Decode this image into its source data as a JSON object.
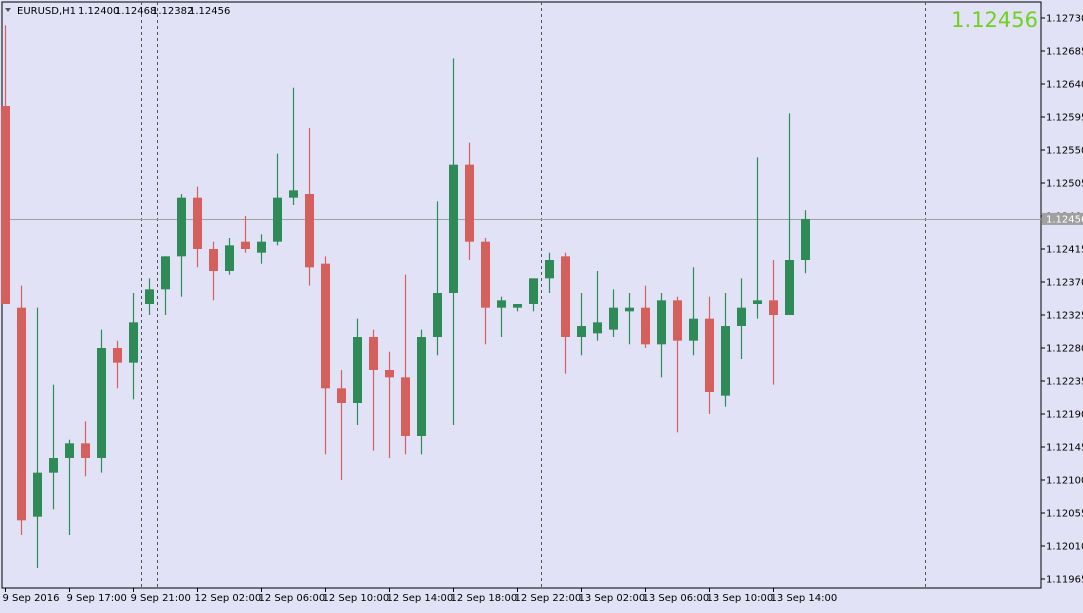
{
  "chart_data": {
    "type": "candlestick",
    "symbol_header": "EURUSD,H1",
    "ohlc_header": [
      "1.12400",
      "1.12468",
      "1.12382",
      "1.12456"
    ],
    "current_price": "1.12456",
    "current_price_value": 1.12456,
    "ylim": [
      1.1195,
      1.1275
    ],
    "y_ticks": [
      "1.12730",
      "1.12685",
      "1.12640",
      "1.12595",
      "1.12550",
      "1.12505",
      "1.12460",
      "1.12415",
      "1.12370",
      "1.12325",
      "1.12280",
      "1.12235",
      "1.12190",
      "1.12145",
      "1.12100",
      "1.12055",
      "1.12010",
      "1.11965"
    ],
    "x_ticks": [
      "9 Sep 2016",
      "9 Sep 17:00",
      "9 Sep 21:00",
      "12 Sep 02:00",
      "12 Sep 06:00",
      "12 Sep 10:00",
      "12 Sep 14:00",
      "12 Sep 18:00",
      "12 Sep 22:00",
      "13 Sep 02:00",
      "13 Sep 06:00",
      "13 Sep 10:00",
      "13 Sep 14:00"
    ],
    "session_separators_after_candle": [
      8.5,
      9.5,
      33.5,
      57.5
    ],
    "colors": {
      "bull": "#2e8a57",
      "bear": "#d45f5d",
      "background": "#e2e2f6",
      "grid": "#000000",
      "price_line": "#a0a0a0",
      "price_label_bg": "#a0a0a0",
      "big_price": "#6fd11e"
    },
    "candles": [
      {
        "o": 1.1261,
        "h": 1.1272,
        "l": 1.1234,
        "c": 1.1234
      },
      {
        "o": 1.12335,
        "h": 1.12365,
        "l": 1.12025,
        "c": 1.12045
      },
      {
        "o": 1.1205,
        "h": 1.12335,
        "l": 1.1198,
        "c": 1.1211
      },
      {
        "o": 1.1211,
        "h": 1.1223,
        "l": 1.1206,
        "c": 1.1213
      },
      {
        "o": 1.1213,
        "h": 1.12155,
        "l": 1.12025,
        "c": 1.1215
      },
      {
        "o": 1.1215,
        "h": 1.1218,
        "l": 1.12105,
        "c": 1.1213
      },
      {
        "o": 1.1213,
        "h": 1.12305,
        "l": 1.1211,
        "c": 1.1228
      },
      {
        "o": 1.1228,
        "h": 1.1229,
        "l": 1.12225,
        "c": 1.1226
      },
      {
        "o": 1.1226,
        "h": 1.12355,
        "l": 1.1221,
        "c": 1.12315
      },
      {
        "o": 1.1234,
        "h": 1.12375,
        "l": 1.12325,
        "c": 1.1236
      },
      {
        "o": 1.1236,
        "h": 1.12405,
        "l": 1.12325,
        "c": 1.12405
      },
      {
        "o": 1.12405,
        "h": 1.1249,
        "l": 1.1235,
        "c": 1.12485
      },
      {
        "o": 1.12485,
        "h": 1.125,
        "l": 1.1239,
        "c": 1.12415
      },
      {
        "o": 1.12415,
        "h": 1.12425,
        "l": 1.12345,
        "c": 1.12385
      },
      {
        "o": 1.12385,
        "h": 1.1243,
        "l": 1.1238,
        "c": 1.1242
      },
      {
        "o": 1.12425,
        "h": 1.1246,
        "l": 1.1241,
        "c": 1.12415
      },
      {
        "o": 1.1241,
        "h": 1.12435,
        "l": 1.12395,
        "c": 1.12425
      },
      {
        "o": 1.12425,
        "h": 1.12545,
        "l": 1.1242,
        "c": 1.12485
      },
      {
        "o": 1.12485,
        "h": 1.12635,
        "l": 1.12475,
        "c": 1.12495
      },
      {
        "o": 1.1249,
        "h": 1.1258,
        "l": 1.12365,
        "c": 1.1239
      },
      {
        "o": 1.12395,
        "h": 1.12405,
        "l": 1.12135,
        "c": 1.12225
      },
      {
        "o": 1.12225,
        "h": 1.1225,
        "l": 1.121,
        "c": 1.12205
      },
      {
        "o": 1.12205,
        "h": 1.1232,
        "l": 1.12175,
        "c": 1.12295
      },
      {
        "o": 1.12295,
        "h": 1.12305,
        "l": 1.1214,
        "c": 1.1225
      },
      {
        "o": 1.1225,
        "h": 1.12275,
        "l": 1.1213,
        "c": 1.1224
      },
      {
        "o": 1.1224,
        "h": 1.1238,
        "l": 1.12135,
        "c": 1.1216
      },
      {
        "o": 1.1216,
        "h": 1.12305,
        "l": 1.12135,
        "c": 1.12295
      },
      {
        "o": 1.12295,
        "h": 1.1248,
        "l": 1.1227,
        "c": 1.12355
      },
      {
        "o": 1.12355,
        "h": 1.12675,
        "l": 1.12175,
        "c": 1.1253
      },
      {
        "o": 1.1253,
        "h": 1.1256,
        "l": 1.124,
        "c": 1.12425
      },
      {
        "o": 1.12425,
        "h": 1.1243,
        "l": 1.12285,
        "c": 1.12335
      },
      {
        "o": 1.12335,
        "h": 1.1235,
        "l": 1.12295,
        "c": 1.12345
      },
      {
        "o": 1.12335,
        "h": 1.1234,
        "l": 1.1233,
        "c": 1.1234
      },
      {
        "o": 1.1234,
        "h": 1.12375,
        "l": 1.1233,
        "c": 1.12375
      },
      {
        "o": 1.12375,
        "h": 1.1241,
        "l": 1.12355,
        "c": 1.124
      },
      {
        "o": 1.12405,
        "h": 1.1241,
        "l": 1.12245,
        "c": 1.12295
      },
      {
        "o": 1.12295,
        "h": 1.12355,
        "l": 1.1227,
        "c": 1.1231
      },
      {
        "o": 1.123,
        "h": 1.12385,
        "l": 1.1229,
        "c": 1.12315
      },
      {
        "o": 1.12305,
        "h": 1.1236,
        "l": 1.12295,
        "c": 1.12335
      },
      {
        "o": 1.1233,
        "h": 1.12355,
        "l": 1.12285,
        "c": 1.12335
      },
      {
        "o": 1.12335,
        "h": 1.12365,
        "l": 1.1228,
        "c": 1.12285
      },
      {
        "o": 1.12285,
        "h": 1.12355,
        "l": 1.1224,
        "c": 1.12345
      },
      {
        "o": 1.12345,
        "h": 1.1235,
        "l": 1.12165,
        "c": 1.1229
      },
      {
        "o": 1.1229,
        "h": 1.1239,
        "l": 1.1227,
        "c": 1.1232
      },
      {
        "o": 1.1232,
        "h": 1.1235,
        "l": 1.1219,
        "c": 1.1222
      },
      {
        "o": 1.12215,
        "h": 1.12355,
        "l": 1.122,
        "c": 1.1231
      },
      {
        "o": 1.1231,
        "h": 1.12375,
        "l": 1.12265,
        "c": 1.12335
      },
      {
        "o": 1.1234,
        "h": 1.1254,
        "l": 1.1232,
        "c": 1.12345
      },
      {
        "o": 1.12345,
        "h": 1.124,
        "l": 1.1223,
        "c": 1.12325
      },
      {
        "o": 1.12325,
        "h": 1.126,
        "l": 1.12325,
        "c": 1.124
      },
      {
        "o": 1.124,
        "h": 1.12468,
        "l": 1.12382,
        "c": 1.12456
      }
    ]
  }
}
